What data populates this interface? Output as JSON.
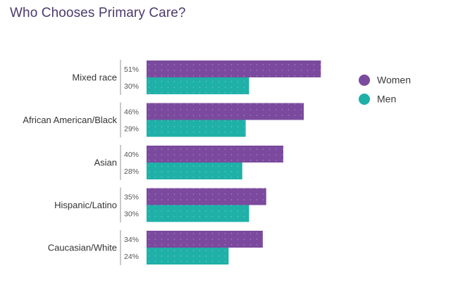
{
  "chart_data": {
    "type": "bar",
    "orientation": "horizontal",
    "title": "Who Chooses Primary Care?",
    "categories": [
      "Mixed race",
      "African American/Black",
      "Asian",
      "Hispanic/Latino",
      "Caucasian/White"
    ],
    "series": [
      {
        "name": "Women",
        "values": [
          51,
          46,
          40,
          35,
          34
        ],
        "labels": [
          "51%",
          "46%",
          "40%",
          "35%",
          "34%"
        ]
      },
      {
        "name": "Men",
        "values": [
          30,
          29,
          28,
          30,
          24
        ],
        "labels": [
          "30%",
          "29%",
          "28%",
          "30%",
          "24%"
        ]
      }
    ],
    "xlim": [
      0,
      100
    ],
    "xlabel": "",
    "ylabel": "",
    "legend_position": "top-right",
    "grid": false
  },
  "colors": {
    "women": "#7b4a9e",
    "men": "#1fb0a8",
    "title": "#4a3a6b",
    "category_label": "#333333",
    "value_label": "#555555",
    "divider": "#b9b9b9"
  }
}
